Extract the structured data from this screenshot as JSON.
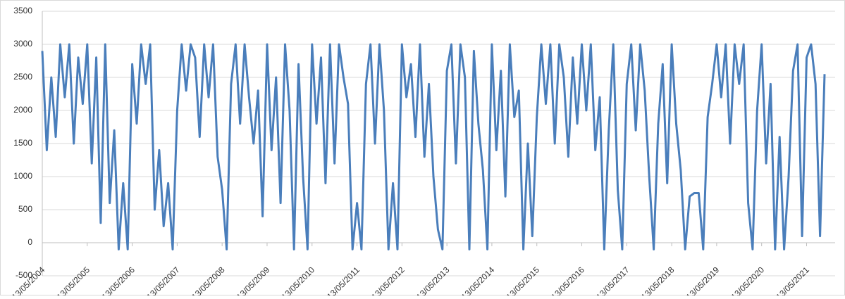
{
  "chart_data": {
    "type": "line",
    "categories": [
      "13/05/2004",
      null,
      null,
      null,
      null,
      null,
      null,
      null,
      null,
      null,
      "13/05/2005",
      null,
      null,
      null,
      null,
      null,
      null,
      null,
      null,
      null,
      "13/05/2006",
      null,
      null,
      null,
      null,
      null,
      null,
      null,
      null,
      null,
      "13/05/2007",
      null,
      null,
      null,
      null,
      null,
      null,
      null,
      null,
      null,
      "13/05/2008",
      null,
      null,
      null,
      null,
      null,
      null,
      null,
      null,
      null,
      "13/05/2009",
      null,
      null,
      null,
      null,
      null,
      null,
      null,
      null,
      null,
      "13/05/2010",
      null,
      null,
      null,
      null,
      null,
      null,
      null,
      null,
      null,
      "13/05/2011",
      null,
      null,
      null,
      null,
      null,
      null,
      null,
      null,
      null,
      "13/05/2012",
      null,
      null,
      null,
      null,
      null,
      null,
      null,
      null,
      null,
      "13/05/2013",
      null,
      null,
      null,
      null,
      null,
      null,
      null,
      null,
      null,
      "13/05/2014",
      null,
      null,
      null,
      null,
      null,
      null,
      null,
      null,
      null,
      "13/05/2015",
      null,
      null,
      null,
      null,
      null,
      null,
      null,
      null,
      null,
      "13/05/2016",
      null,
      null,
      null,
      null,
      null,
      null,
      null,
      null,
      null,
      "13/05/2017",
      null,
      null,
      null,
      null,
      null,
      null,
      null,
      null,
      null,
      "13/05/2018",
      null,
      null,
      null,
      null,
      null,
      null,
      null,
      null,
      null,
      "13/05/2019",
      null,
      null,
      null,
      null,
      null,
      null,
      null,
      null,
      null,
      "13/05/2020",
      null,
      null,
      null,
      null,
      null,
      null,
      null,
      null,
      null,
      "13/05/2021",
      null,
      null,
      null,
      null
    ],
    "series": [
      {
        "color": "#4a7ebb",
        "values": [
          2900,
          1400,
          2500,
          1600,
          3000,
          2200,
          3000,
          1500,
          2800,
          2100,
          3000,
          1200,
          2800,
          300,
          3000,
          600,
          1700,
          -100,
          900,
          -100,
          2700,
          1800,
          3000,
          2400,
          3000,
          500,
          1400,
          250,
          900,
          -100,
          2000,
          3000,
          2300,
          3000,
          2800,
          1600,
          3000,
          2200,
          3000,
          1300,
          800,
          -100,
          2400,
          3000,
          1800,
          3000,
          2200,
          1500,
          2300,
          400,
          3000,
          1400,
          2500,
          600,
          3000,
          2000,
          -100,
          2700,
          1000,
          -100,
          3000,
          1800,
          2800,
          900,
          3000,
          1200,
          3000,
          2500,
          2100,
          -100,
          600,
          -100,
          2400,
          3000,
          1500,
          3000,
          2000,
          -100,
          900,
          -100,
          3000,
          2200,
          2700,
          1600,
          3000,
          1300,
          2400,
          1000,
          200,
          -100,
          2600,
          3000,
          1200,
          3000,
          2500,
          -100,
          2900,
          1800,
          1100,
          -100,
          3000,
          1400,
          2600,
          700,
          3000,
          1900,
          2300,
          -100,
          1500,
          100,
          1900,
          3000,
          2100,
          3000,
          1500,
          3000,
          2500,
          1300,
          2800,
          1800,
          3000,
          2000,
          3000,
          1400,
          2200,
          -100,
          1700,
          3000,
          800,
          -100,
          2400,
          3000,
          1700,
          3000,
          2300,
          1000,
          -100,
          1800,
          2700,
          900,
          3000,
          1800,
          1100,
          -100,
          700,
          750,
          750,
          -100,
          1900,
          2400,
          3000,
          2200,
          3000,
          1500,
          3000,
          2400,
          3000,
          600,
          -100,
          2000,
          3000,
          1200,
          2400,
          -100,
          1600,
          -100,
          1000,
          2600,
          3000,
          100,
          2800,
          3000,
          2400,
          100,
          2550
        ]
      }
    ],
    "ylim": [
      -500,
      3500
    ],
    "yticks": [
      -500,
      0,
      500,
      1000,
      1500,
      2000,
      2500,
      3000,
      3500
    ],
    "grid": true
  }
}
